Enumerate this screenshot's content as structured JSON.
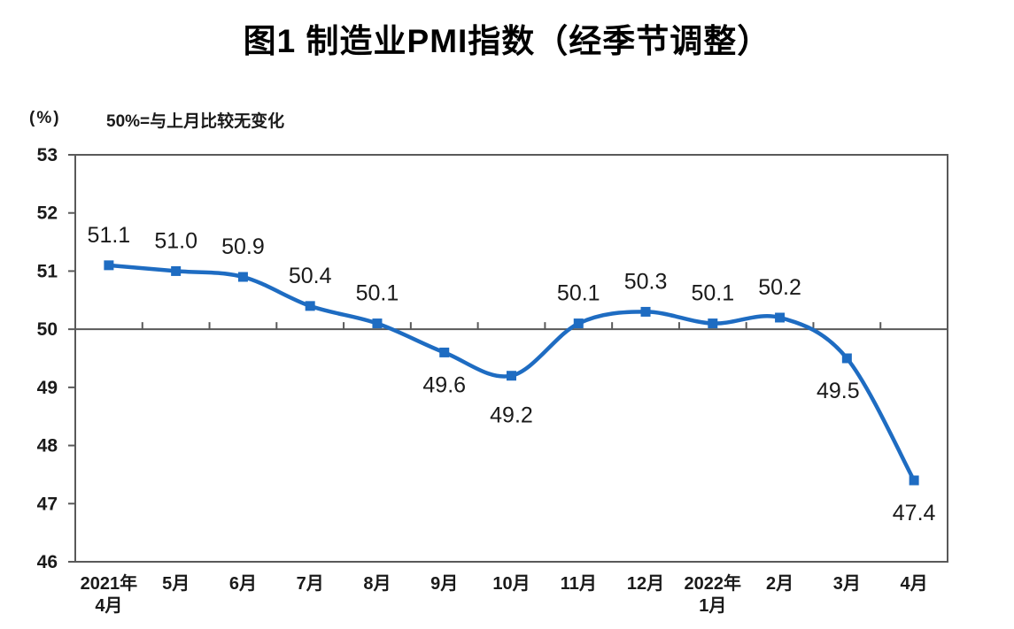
{
  "chart_data": {
    "type": "line",
    "title": "图1 制造业PMI指数（经季节调整）",
    "unit_label": "(%)",
    "annotation": "50%=与上月比较无变化",
    "categories": [
      [
        "2021年",
        "4月"
      ],
      [
        "5月"
      ],
      [
        "6月"
      ],
      [
        "7月"
      ],
      [
        "8月"
      ],
      [
        "9月"
      ],
      [
        "10月"
      ],
      [
        "11月"
      ],
      [
        "12月"
      ],
      [
        "2022年",
        "1月"
      ],
      [
        "2月"
      ],
      [
        "3月"
      ],
      [
        "4月"
      ]
    ],
    "values": [
      51.1,
      51.0,
      50.9,
      50.4,
      50.1,
      49.6,
      49.2,
      50.1,
      50.3,
      50.1,
      50.2,
      49.5,
      47.4
    ],
    "data_labels": [
      "51.1",
      "51.0",
      "50.9",
      "50.4",
      "50.1",
      "49.6",
      "49.2",
      "50.1",
      "50.3",
      "50.1",
      "50.2",
      "49.5",
      "47.4"
    ],
    "ylim": [
      46,
      53
    ],
    "yticks": [
      46,
      47,
      48,
      49,
      50,
      51,
      52,
      53
    ],
    "reference_line_value": 50,
    "smooth": true,
    "grid": false,
    "legend_position": "none",
    "marker": "square",
    "colors": {
      "series": "#1e6cc2",
      "axis": "#595959",
      "tick_text": "#1a1a1a",
      "data_label_text": "#1a1a1a",
      "title_text": "#000000",
      "background": "#ffffff"
    }
  }
}
